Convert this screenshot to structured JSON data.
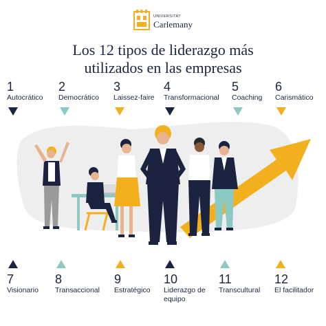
{
  "logo": {
    "top_text": "UNIVERSITAT",
    "main_text": "Carlemany"
  },
  "title": {
    "line1": "Los 12 tipos de liderazgo más",
    "line2": "utilizados en las empresas"
  },
  "colors": {
    "navy": "#1c2340",
    "teal": "#8cc9c2",
    "yellow": "#f2b01e"
  },
  "top_items": [
    {
      "number": "1",
      "label": "Autocrático",
      "icon": "navy-triangle-down-icon"
    },
    {
      "number": "2",
      "label": "Democrático",
      "icon": "teal-triangle-down-icon"
    },
    {
      "number": "3",
      "label": "Laissez-faire",
      "icon": "yellow-triangle-down-icon"
    },
    {
      "number": "4",
      "label": "Transformacional",
      "icon": "navy-triangle-down-icon"
    },
    {
      "number": "5",
      "label": "Coaching",
      "icon": "teal-triangle-down-icon"
    },
    {
      "number": "6",
      "label": "Carismático",
      "icon": "yellow-triangle-down-icon"
    }
  ],
  "bottom_items": [
    {
      "number": "7",
      "label": "Visionario",
      "icon": "navy-triangle-up-icon"
    },
    {
      "number": "8",
      "label": "Transaccional",
      "icon": "teal-triangle-up-icon"
    },
    {
      "number": "9",
      "label": "Estratégico",
      "icon": "yellow-triangle-up-icon"
    },
    {
      "number": "10",
      "label": "Liderazgo de",
      "label2": "equipo",
      "icon": "navy-triangle-up-icon"
    },
    {
      "number": "11",
      "label": "Transcultural",
      "icon": "teal-triangle-up-icon"
    },
    {
      "number": "12",
      "label": "El facilitador",
      "icon": "yellow-triangle-up-icon"
    }
  ]
}
